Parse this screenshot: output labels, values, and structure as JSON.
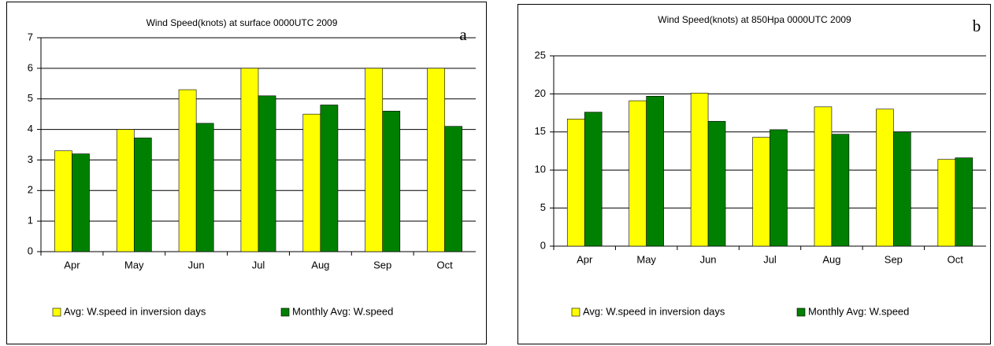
{
  "chart_data": [
    {
      "type": "bar",
      "title": "Wind Speed(knots) at  surface 0000UTC 2009",
      "annotation": "a",
      "categories": [
        "Apr",
        "May",
        "Jun",
        "Jul",
        "Aug",
        "Sep",
        "Oct"
      ],
      "series": [
        {
          "name": "Avg: W.speed in  inversion days",
          "color": "#ffff00",
          "values": [
            3.3,
            4.0,
            5.3,
            6.0,
            4.5,
            6.0,
            6.0
          ]
        },
        {
          "name": "Monthly Avg: W.speed",
          "color": "#008000",
          "values": [
            3.2,
            3.72,
            4.2,
            5.1,
            4.8,
            4.6,
            4.1
          ]
        }
      ],
      "ylim": [
        0,
        7
      ],
      "yticks": [
        0,
        1,
        2,
        3,
        4,
        5,
        6,
        7
      ],
      "grid": true,
      "legend": "bottom"
    },
    {
      "type": "bar",
      "title": "Wind Speed(knots) at 850Hpa 0000UTC 2009",
      "annotation": "b",
      "categories": [
        "Apr",
        "May",
        "Jun",
        "Jul",
        "Aug",
        "Sep",
        "Oct"
      ],
      "series": [
        {
          "name": "Avg: W.speed in inversion days",
          "color": "#ffff00",
          "values": [
            16.7,
            19.1,
            20.1,
            14.3,
            18.3,
            18.0,
            11.4
          ]
        },
        {
          "name": "Monthly Avg: W.speed",
          "color": "#008000",
          "values": [
            17.6,
            19.7,
            16.4,
            15.3,
            14.7,
            15.0,
            11.6
          ]
        }
      ],
      "ylim": [
        0,
        25
      ],
      "yticks": [
        0,
        5,
        10,
        15,
        20,
        25
      ],
      "grid": true,
      "legend": "bottom"
    }
  ]
}
